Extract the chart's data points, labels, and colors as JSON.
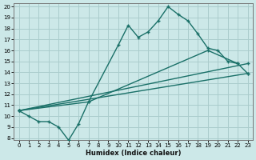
{
  "xlabel": "Humidex (Indice chaleur)",
  "bg_color": "#cce8e8",
  "grid_color": "#aacccc",
  "line_color": "#1a7068",
  "xlim": [
    -0.5,
    23.5
  ],
  "ylim": [
    7.8,
    20.3
  ],
  "yticks": [
    8,
    9,
    10,
    11,
    12,
    13,
    14,
    15,
    16,
    17,
    18,
    19,
    20
  ],
  "xticks": [
    0,
    1,
    2,
    3,
    4,
    5,
    6,
    7,
    8,
    9,
    10,
    11,
    12,
    13,
    14,
    15,
    16,
    17,
    18,
    19,
    20,
    21,
    22,
    23
  ],
  "line_main_x": [
    0,
    1,
    2,
    3,
    4,
    5,
    6,
    7,
    10,
    11,
    12,
    13,
    14,
    15,
    16,
    17,
    18,
    19,
    20,
    21,
    22,
    23
  ],
  "line_main_y": [
    10.5,
    10.0,
    9.5,
    9.5,
    9.0,
    7.8,
    9.3,
    11.3,
    16.5,
    18.3,
    17.2,
    17.7,
    18.7,
    20.0,
    19.3,
    18.7,
    17.5,
    16.2,
    16.0,
    15.0,
    14.8,
    13.9
  ],
  "line2_x": [
    0,
    7,
    19,
    22
  ],
  "line2_y": [
    10.5,
    11.3,
    16.0,
    14.8
  ],
  "line3_x": [
    0,
    23
  ],
  "line3_y": [
    10.5,
    13.9
  ],
  "line4_x": [
    0,
    23
  ],
  "line4_y": [
    10.5,
    14.8
  ]
}
